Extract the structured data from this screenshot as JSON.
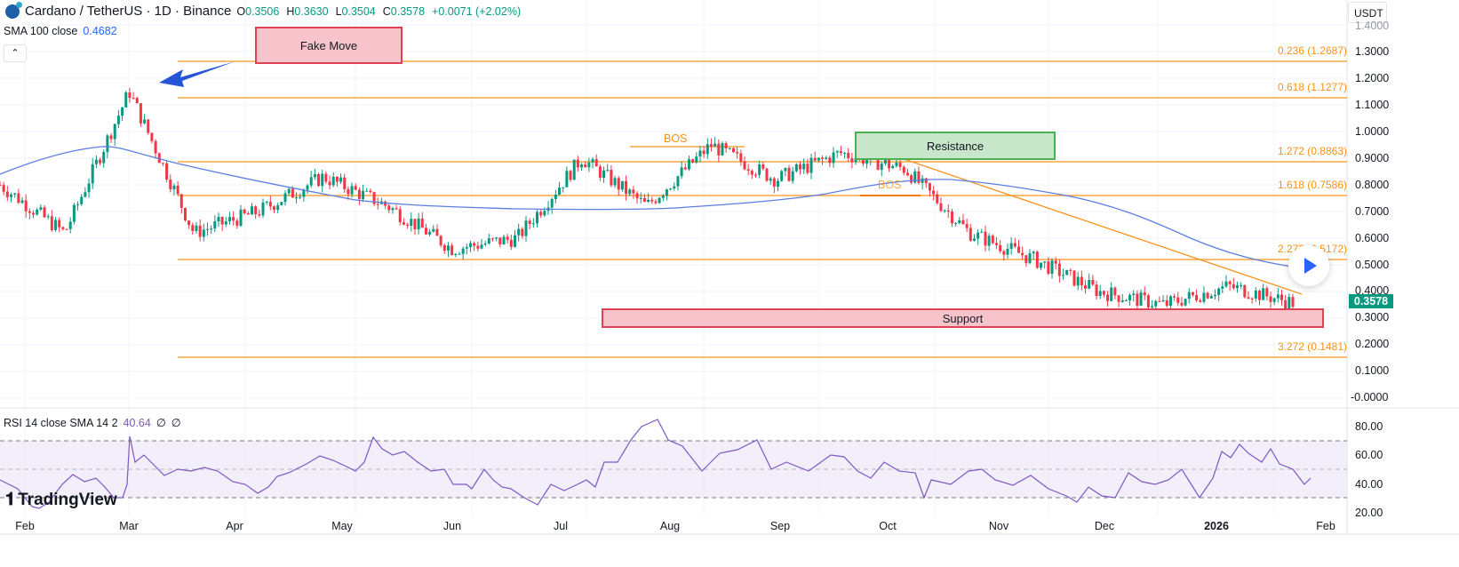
{
  "header": {
    "symbol_title": "Cardano / TetherUS · 1D · Binance",
    "ohlc": {
      "open_label": "O",
      "open": "0.3506",
      "high_label": "H",
      "high": "0.3630",
      "low_label": "L",
      "low": "0.3504",
      "close_label": "C",
      "close": "0.3578",
      "change": "+0.0071 (+2.02%)"
    },
    "coin_icon": "cardano-icon",
    "currency": "USDT"
  },
  "indicators": {
    "sma": {
      "label": "SMA 100 close",
      "value": "0.4682",
      "color": "#2962ff"
    },
    "rsi": {
      "label": "RSI 14 close SMA 14 2",
      "value": "40.64",
      "extra1": "∅",
      "extra2": "∅",
      "color": "#7e57c2"
    }
  },
  "annotations": {
    "fake_move": "Fake Move",
    "resistance": "Resistance",
    "support": "Support",
    "bos_1": "BOS",
    "bos_2": "BOS"
  },
  "last_price": "0.3578",
  "branding": {
    "logo_text": "TradingView"
  },
  "colors": {
    "up": "#089981",
    "down": "#f23645",
    "fib": "#f7931a",
    "sma": "#2962ff",
    "rsi": "#7e57c2"
  },
  "chart_data": [
    {
      "type": "candlestick",
      "title": "Cardano / TetherUS · 1D · Binance",
      "ylabel": "USDT",
      "ylim": [
        -0.05,
        1.45
      ],
      "y_ticks": [
        "1.3000",
        "1.2000",
        "1.1000",
        "1.0000",
        "0.9000",
        "0.8000",
        "0.7000",
        "0.6000",
        "0.5000",
        "0.4000",
        "0.3000",
        "0.2000",
        "0.1000",
        "-0.0000"
      ],
      "x_ticks": [
        "Feb",
        "Mar",
        "Apr",
        "May",
        "Jun",
        "Jul",
        "Aug",
        "Sep",
        "Oct",
        "Nov",
        "Dec",
        "2026",
        "Feb"
      ],
      "approx_close_path": [
        {
          "x": "Feb",
          "y": 0.8
        },
        {
          "x": "Mar",
          "y": 0.62
        },
        {
          "x": "Mar+",
          "y": 1.15
        },
        {
          "x": "Apr",
          "y": 0.62
        },
        {
          "x": "May",
          "y": 0.7
        },
        {
          "x": "May+",
          "y": 0.83
        },
        {
          "x": "Jun",
          "y": 0.72
        },
        {
          "x": "Jun+",
          "y": 0.56
        },
        {
          "x": "Jul",
          "y": 0.6
        },
        {
          "x": "Jul+",
          "y": 0.9
        },
        {
          "x": "Aug",
          "y": 0.72
        },
        {
          "x": "Aug+",
          "y": 0.95
        },
        {
          "x": "Sep",
          "y": 0.82
        },
        {
          "x": "Sep+",
          "y": 0.92
        },
        {
          "x": "Oct",
          "y": 0.86
        },
        {
          "x": "Oct+",
          "y": 0.62
        },
        {
          "x": "Nov",
          "y": 0.52
        },
        {
          "x": "Dec",
          "y": 0.4
        },
        {
          "x": "2026",
          "y": 0.35
        },
        {
          "x": "2026+",
          "y": 0.42
        },
        {
          "x": "last",
          "y": 0.3578
        }
      ],
      "last": {
        "open": 0.3506,
        "high": 0.363,
        "low": 0.3504,
        "close": 0.3578,
        "change": 0.0071,
        "change_pct": 2.02
      },
      "series": [
        {
          "name": "SMA 100 close",
          "last_value": 0.4682
        }
      ],
      "fib_levels": [
        {
          "label": "0.236 (1.2687)",
          "ratio": 0.236,
          "price": 1.2687
        },
        {
          "label": "0.618 (1.1277)",
          "ratio": 0.618,
          "price": 1.1277
        },
        {
          "label": "1.272 (0.8863)",
          "ratio": 1.272,
          "price": 0.8863
        },
        {
          "label": "1.618 (0.7586)",
          "ratio": 1.618,
          "price": 0.7586
        },
        {
          "label": "2.272 (0.5172)",
          "ratio": 2.272,
          "price": 0.5172
        },
        {
          "label": "3.272 (0.1481)",
          "ratio": 3.272,
          "price": 0.1481
        }
      ],
      "zones": [
        {
          "label": "Fake Move",
          "color": "#f8c4cb"
        },
        {
          "label": "Resistance",
          "price_range": [
            0.9,
            1.0
          ],
          "color": "#c8e6c9"
        },
        {
          "label": "Support",
          "price_range": [
            0.26,
            0.33
          ],
          "color": "#f8c4cb"
        }
      ],
      "annotations": [
        "BOS",
        "BOS",
        "Fake Move arrow",
        "descending trendline"
      ]
    },
    {
      "type": "line",
      "title": "RSI 14 close SMA 14 2",
      "ylim": [
        15,
        90
      ],
      "y_ticks": [
        "80.00",
        "60.00",
        "40.00",
        "20.00"
      ],
      "bands": {
        "upper": 70,
        "middle": 50,
        "lower": 30
      },
      "last_value": 40.64,
      "approx_values": [
        {
          "x": "Feb",
          "y": 32
        },
        {
          "x": "Feb+",
          "y": 45
        },
        {
          "x": "Mar",
          "y": 78
        },
        {
          "x": "Mar+",
          "y": 52
        },
        {
          "x": "Apr",
          "y": 45
        },
        {
          "x": "Apr+",
          "y": 38
        },
        {
          "x": "May",
          "y": 60
        },
        {
          "x": "May+",
          "y": 48
        },
        {
          "x": "Jun",
          "y": 42
        },
        {
          "x": "Jun+",
          "y": 26
        },
        {
          "x": "Jul",
          "y": 50
        },
        {
          "x": "Jul+",
          "y": 84
        },
        {
          "x": "Aug",
          "y": 60
        },
        {
          "x": "Aug+",
          "y": 72
        },
        {
          "x": "Sep",
          "y": 52
        },
        {
          "x": "Sep+",
          "y": 58
        },
        {
          "x": "Oct",
          "y": 55
        },
        {
          "x": "Oct+",
          "y": 30
        },
        {
          "x": "Nov",
          "y": 45
        },
        {
          "x": "Nov+",
          "y": 26
        },
        {
          "x": "Dec",
          "y": 30
        },
        {
          "x": "Dec+",
          "y": 52
        },
        {
          "x": "2026",
          "y": 35
        },
        {
          "x": "2026+",
          "y": 60
        },
        {
          "x": "last",
          "y": 40.64
        }
      ]
    }
  ]
}
